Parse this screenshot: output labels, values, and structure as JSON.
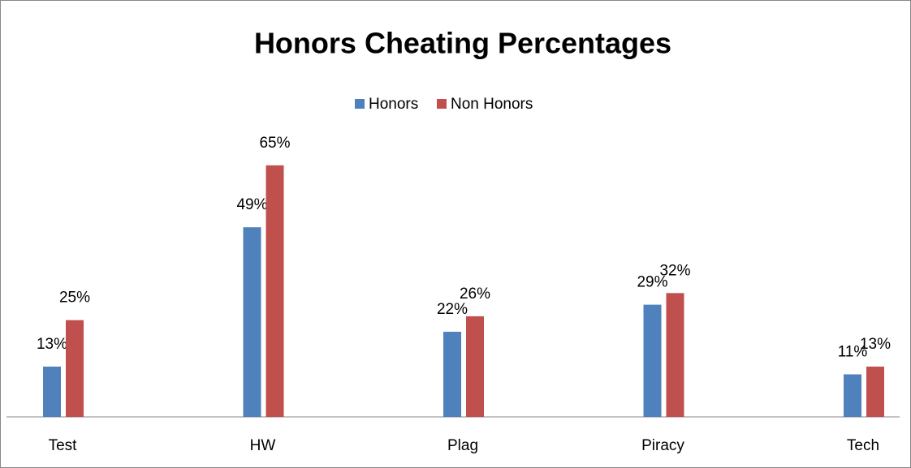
{
  "chart_data": {
    "type": "bar",
    "title": "Honors Cheating Percentages",
    "categories": [
      "Test",
      "HW",
      "Plag",
      "Piracy",
      "Tech"
    ],
    "series": [
      {
        "name": "Honors",
        "color": "#4f81bd",
        "values": [
          13,
          49,
          22,
          29,
          11
        ],
        "value_labels": [
          "13%",
          "49%",
          "22%",
          "29%",
          "11%"
        ]
      },
      {
        "name": "Non Honors",
        "color": "#c0504d",
        "values": [
          25,
          65,
          26,
          32,
          13
        ],
        "value_labels": [
          "25%",
          "65%",
          "26%",
          "32%",
          "13%"
        ]
      }
    ],
    "ylim": [
      0,
      70
    ],
    "legend": "top"
  }
}
